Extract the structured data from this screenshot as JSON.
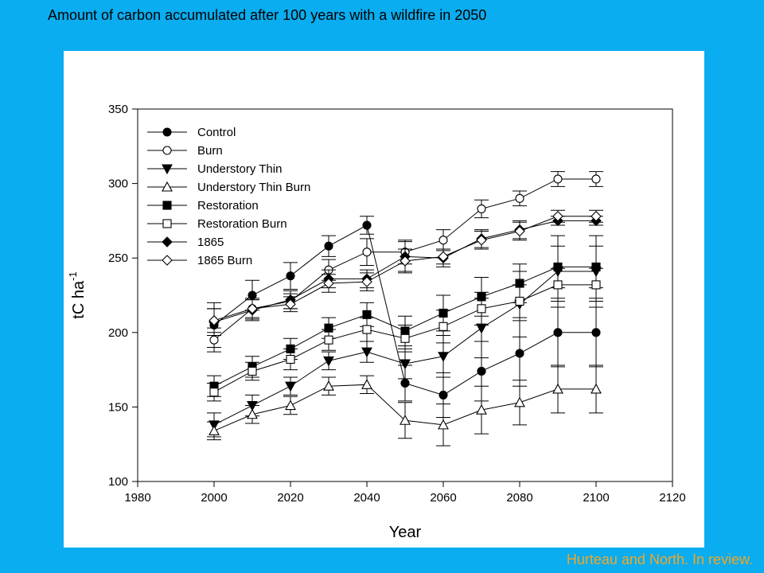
{
  "slide_title": "Amount of carbon accumulated after 100 years with a wildfire in 2050",
  "citation": "Hurteau and North.  In review.",
  "chart_data": {
    "type": "line",
    "title": "",
    "xlabel": "Year",
    "ylabel_main": "tC ha",
    "ylabel_superscript": "-1",
    "xlim": [
      1980,
      2120
    ],
    "ylim": [
      100,
      350
    ],
    "xticks": [
      1980,
      2000,
      2020,
      2040,
      2060,
      2080,
      2100,
      2120
    ],
    "yticks": [
      100,
      150,
      200,
      250,
      300,
      350
    ],
    "grid": false,
    "legend_position": "top-left",
    "x": [
      2000,
      2010,
      2020,
      2030,
      2040,
      2050,
      2060,
      2070,
      2080,
      2090,
      2100
    ],
    "series": [
      {
        "name": "Control",
        "marker": "circle",
        "filled": true,
        "values": [
          205,
          225,
          238,
          258,
          272,
          166,
          158,
          174,
          186,
          200,
          200
        ],
        "errors": [
          15,
          10,
          9,
          7,
          6,
          12,
          15,
          20,
          22,
          23,
          23
        ]
      },
      {
        "name": "Burn",
        "marker": "circle",
        "filled": false,
        "values": [
          195,
          216,
          221,
          242,
          254,
          254,
          262,
          283,
          290,
          303,
          303
        ],
        "errors": [
          8,
          7,
          5,
          7,
          9,
          8,
          7,
          6,
          5,
          5,
          5
        ]
      },
      {
        "name": "Understory Thin",
        "marker": "triangle-down",
        "filled": true,
        "values": [
          138,
          151,
          164,
          181,
          187,
          179,
          184,
          203,
          219,
          241,
          241
        ],
        "errors": [
          8,
          7,
          6,
          6,
          7,
          10,
          14,
          20,
          22,
          24,
          24
        ]
      },
      {
        "name": "Understory Thin Burn",
        "marker": "triangle-up",
        "filled": false,
        "values": [
          134,
          145,
          151,
          164,
          165,
          141,
          138,
          148,
          153,
          162,
          162
        ],
        "errors": [
          6,
          6,
          6,
          6,
          6,
          12,
          14,
          16,
          15,
          16,
          16
        ]
      },
      {
        "name": "Restoration",
        "marker": "square",
        "filled": true,
        "values": [
          164,
          177,
          189,
          203,
          212,
          201,
          213,
          224,
          233,
          244,
          244
        ],
        "errors": [
          7,
          7,
          7,
          7,
          8,
          10,
          12,
          13,
          13,
          14,
          14
        ]
      },
      {
        "name": "Restoration Burn",
        "marker": "square",
        "filled": false,
        "values": [
          160,
          174,
          182,
          195,
          202,
          196,
          204,
          216,
          221,
          232,
          232
        ],
        "errors": [
          6,
          6,
          7,
          7,
          8,
          9,
          11,
          11,
          11,
          11,
          11
        ]
      },
      {
        "name": "1865",
        "marker": "diamond",
        "filled": true,
        "values": [
          207,
          215,
          222,
          236,
          236,
          251,
          250,
          263,
          269,
          275,
          275
        ],
        "errors": [
          9,
          7,
          6,
          6,
          6,
          10,
          6,
          6,
          6,
          3,
          3
        ]
      },
      {
        "name": "1865 Burn",
        "marker": "diamond",
        "filled": false,
        "values": [
          208,
          216,
          219,
          233,
          234,
          248,
          251,
          262,
          268,
          278,
          278
        ],
        "errors": [
          8,
          6,
          5,
          6,
          6,
          8,
          5,
          6,
          6,
          4,
          4
        ]
      }
    ]
  }
}
